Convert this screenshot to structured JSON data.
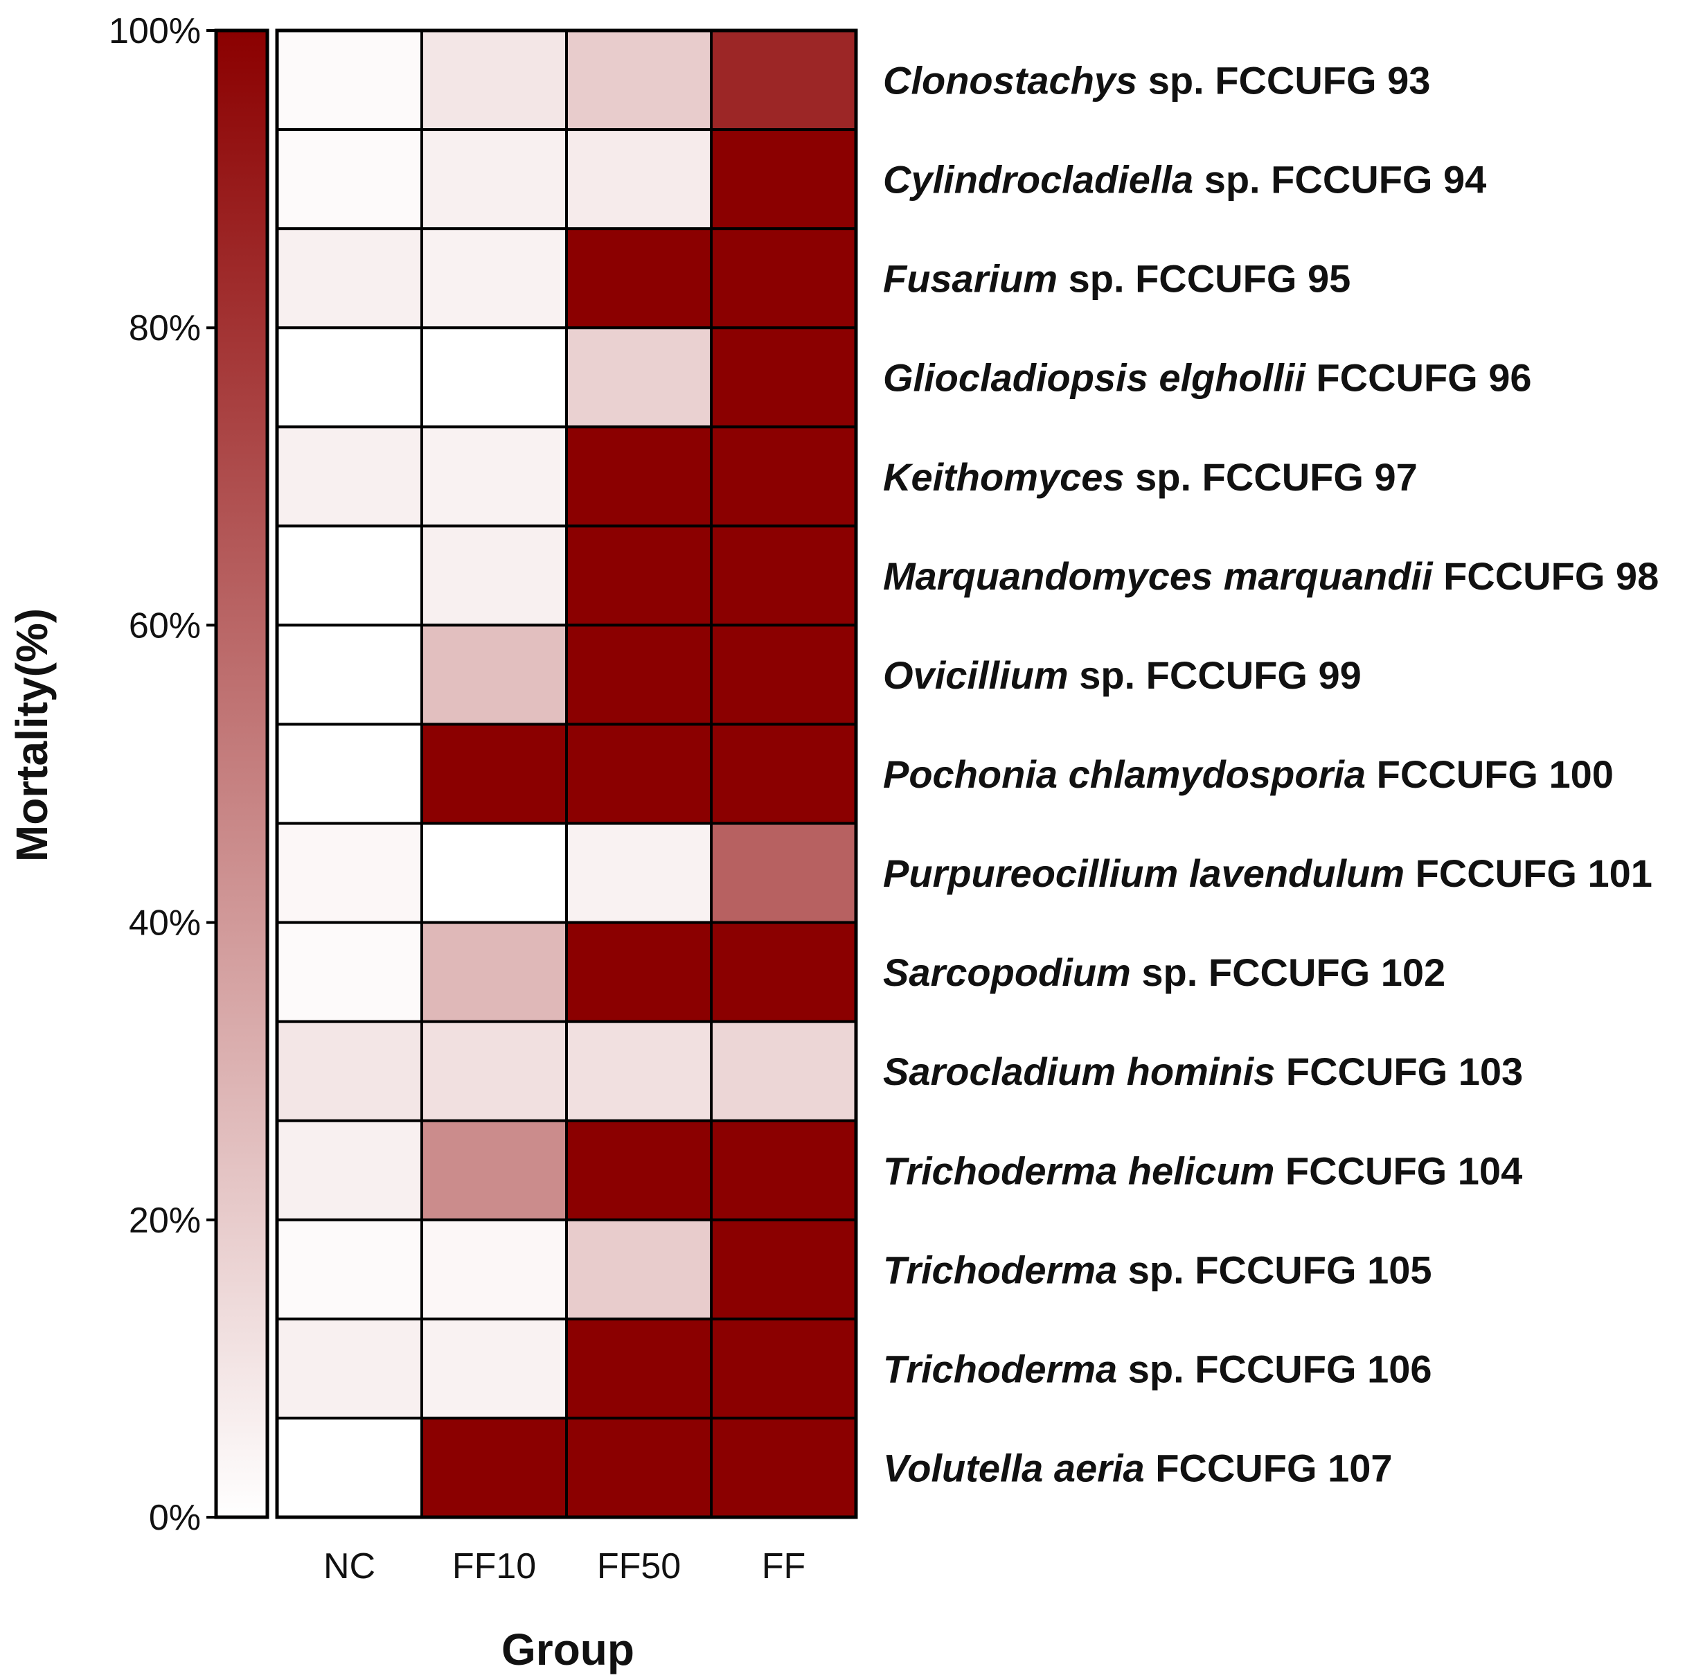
{
  "chart_data": {
    "type": "heatmap",
    "title": "",
    "xlabel": "Group",
    "ylabel": "Mortality(%)",
    "columns": [
      "NC",
      "FF10",
      "FF50",
      "FF"
    ],
    "rows": [
      {
        "italic": "Clonostachys",
        "rest": " sp. FCCUFG 93"
      },
      {
        "italic": "Cylindrocladiella",
        "rest": " sp. FCCUFG 94"
      },
      {
        "italic": "Fusarium",
        "rest": " sp. FCCUFG 95"
      },
      {
        "italic": "Gliocladiopsis elghollii",
        "rest": " FCCUFG 96"
      },
      {
        "italic": "Keithomyces",
        "rest": " sp. FCCUFG 97"
      },
      {
        "italic": "Marquandomyces marquandii",
        "rest": " FCCUFG 98"
      },
      {
        "italic": "Ovicillium",
        "rest": " sp. FCCUFG 99"
      },
      {
        "italic": "Pochonia chlamydosporia",
        "rest": " FCCUFG 100"
      },
      {
        "italic": "Purpureocillium lavendulum",
        "rest": " FCCUFG 101"
      },
      {
        "italic": "Sarcopodium",
        "rest": " sp. FCCUFG 102"
      },
      {
        "italic": "Sarocladium hominis",
        "rest": " FCCUFG 103"
      },
      {
        "italic": "Trichoderma helicum",
        "rest": " FCCUFG 104"
      },
      {
        "italic": "Trichoderma",
        "rest": " sp. FCCUFG 105"
      },
      {
        "italic": "Trichoderma",
        "rest": " sp. FCCUFG 106"
      },
      {
        "italic": "Volutella aeria",
        "rest": " FCCUFG 107"
      }
    ],
    "values": [
      [
        2,
        10,
        20,
        85
      ],
      [
        2,
        6,
        8,
        100
      ],
      [
        6,
        5,
        100,
        100
      ],
      [
        0,
        0,
        18,
        100
      ],
      [
        6,
        5,
        100,
        100
      ],
      [
        0,
        6,
        100,
        100
      ],
      [
        0,
        25,
        100,
        100
      ],
      [
        0,
        100,
        100,
        100
      ],
      [
        3,
        0,
        5,
        62
      ],
      [
        2,
        28,
        100,
        100
      ],
      [
        10,
        12,
        12,
        16
      ],
      [
        6,
        45,
        100,
        100
      ],
      [
        2,
        3,
        20,
        100
      ],
      [
        6,
        5,
        100,
        100
      ],
      [
        0,
        100,
        100,
        100
      ]
    ],
    "colorbar": {
      "min": 0,
      "max": 100,
      "low_color": "#ffffff",
      "high_color": "#8b0000",
      "ticks": [
        "0%",
        "20%",
        "40%",
        "60%",
        "80%",
        "100%"
      ]
    }
  }
}
